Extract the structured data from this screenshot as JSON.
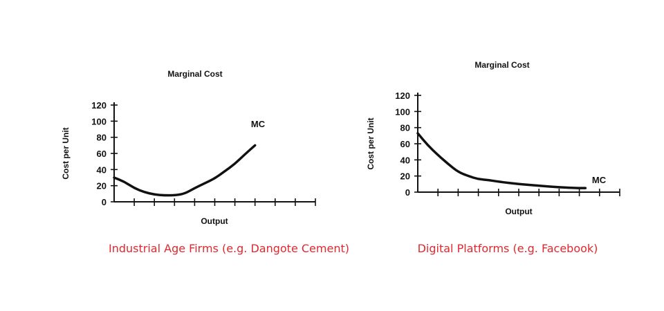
{
  "chart_data": [
    {
      "type": "line",
      "title": "Marginal Cost",
      "xlabel": "Output",
      "ylabel": "Cost per Unit",
      "ylim": [
        0,
        120
      ],
      "yticks": [
        0,
        20,
        40,
        60,
        80,
        100,
        120
      ],
      "xlim": [
        0,
        10
      ],
      "x_tick_count": 10,
      "series": [
        {
          "name": "MC",
          "x": [
            0,
            0.5,
            1,
            1.5,
            2,
            2.5,
            3,
            3.5,
            4,
            4.5,
            5,
            5.5,
            6,
            6.5,
            7
          ],
          "y": [
            30,
            25,
            17,
            12,
            9,
            8,
            8,
            10,
            17,
            23,
            29,
            38,
            47,
            59,
            70
          ]
        }
      ],
      "caption": "Industrial Age Firms (e.g. Dangote Cement)",
      "caption_color": "#e0282e"
    },
    {
      "type": "line",
      "title": "Marginal Cost",
      "xlabel": "Output",
      "ylabel": "Cost per Unit",
      "ylim": [
        0,
        120
      ],
      "yticks": [
        0,
        20,
        40,
        60,
        80,
        100,
        120
      ],
      "xlim": [
        0,
        10
      ],
      "x_tick_count": 10,
      "series": [
        {
          "name": "MC",
          "x": [
            0,
            0.5,
            1,
            1.5,
            2,
            2.5,
            3,
            3.5,
            4,
            5,
            6,
            7,
            8,
            8.3
          ],
          "y": [
            73,
            58,
            46,
            35,
            25,
            20,
            16,
            15,
            13,
            10,
            8,
            6,
            5,
            5
          ]
        }
      ],
      "caption": "Digital Platforms (e.g. Facebook)",
      "caption_color": "#e0282e"
    }
  ]
}
